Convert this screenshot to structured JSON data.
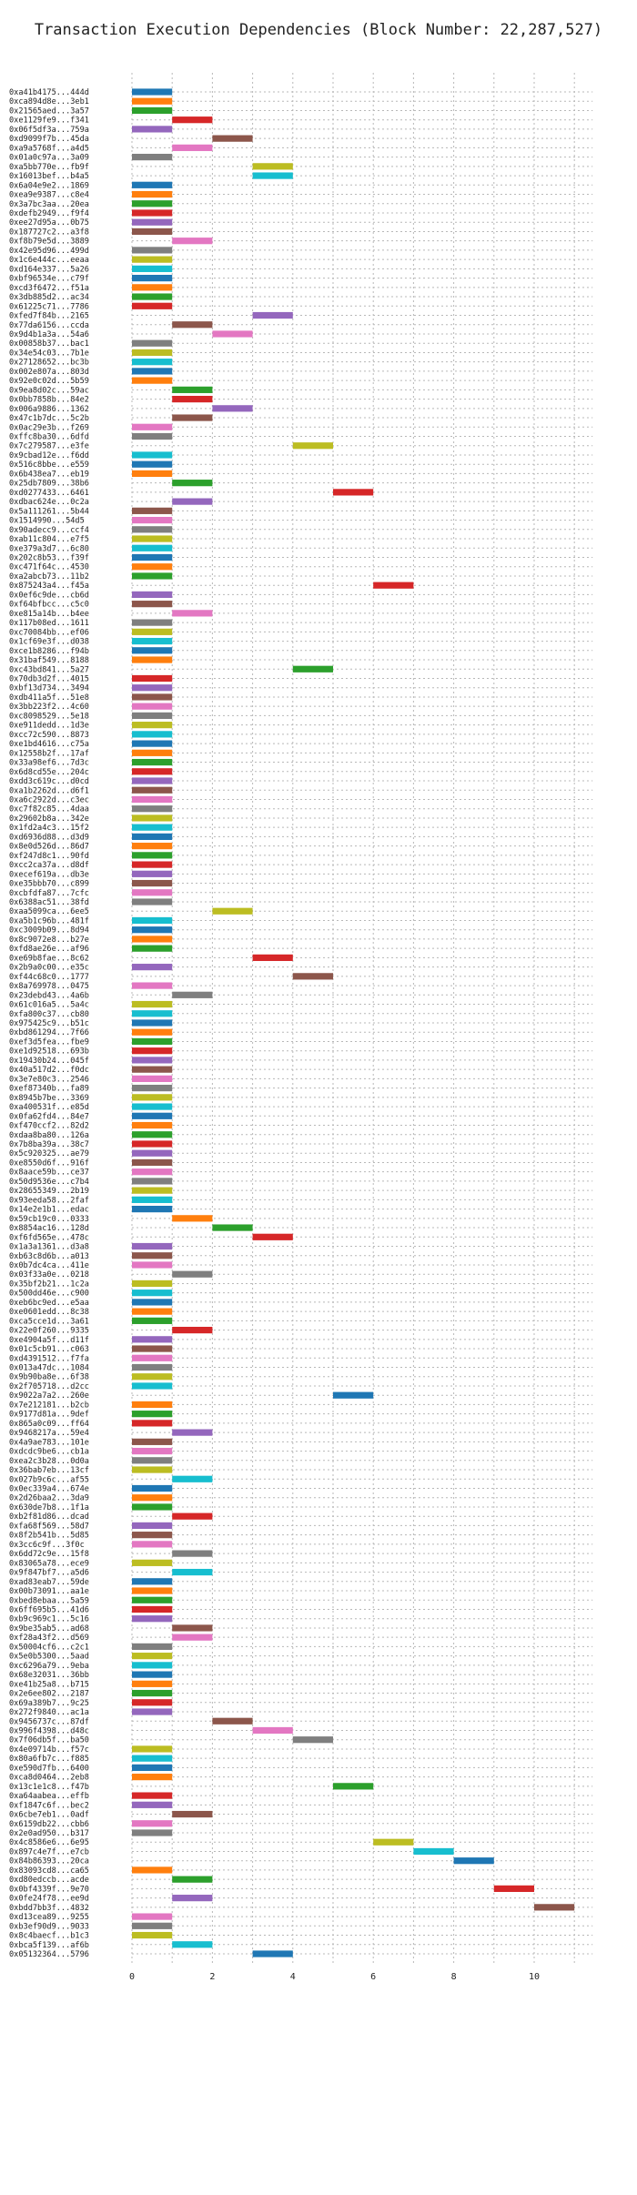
{
  "chart_data": {
    "type": "bar",
    "orientation": "horizontal-gantt",
    "title": "Transaction Execution Dependencies (Block Number: 22,287,527)",
    "xlabel": "",
    "ylabel": "",
    "xlim": [
      0,
      11
    ],
    "xticks": [
      0,
      2,
      4,
      6,
      8,
      10
    ],
    "grid": true,
    "palette": [
      "#1f77b4",
      "#ff7f0e",
      "#2ca02c",
      "#d62728",
      "#9467bd",
      "#8c564b",
      "#e377c2",
      "#7f7f7f",
      "#bcbd22",
      "#17becf"
    ],
    "rows": [
      {
        "label": "0xa41b4175...444d",
        "start": 0,
        "end": 1
      },
      {
        "label": "0xca894d8e...3eb1",
        "start": 0,
        "end": 1
      },
      {
        "label": "0x21565aed...3a57",
        "start": 0,
        "end": 1
      },
      {
        "label": "0xe1129fe9...f341",
        "start": 1,
        "end": 2
      },
      {
        "label": "0x06f5df3a...759a",
        "start": 0,
        "end": 1
      },
      {
        "label": "0xd9099f7b...45da",
        "start": 2,
        "end": 3
      },
      {
        "label": "0xa9a5768f...a4d5",
        "start": 1,
        "end": 2
      },
      {
        "label": "0x01a0c97a...3a09",
        "start": 0,
        "end": 1
      },
      {
        "label": "0xa5bb770e...fb9f",
        "start": 3,
        "end": 4
      },
      {
        "label": "0x16013bef...b4a5",
        "start": 3,
        "end": 4
      },
      {
        "label": "0x6a04e9e2...1869",
        "start": 0,
        "end": 1
      },
      {
        "label": "0xea9e9387...c8e4",
        "start": 0,
        "end": 1
      },
      {
        "label": "0x3a7bc3aa...20ea",
        "start": 0,
        "end": 1
      },
      {
        "label": "0xdefb2949...f9f4",
        "start": 0,
        "end": 1
      },
      {
        "label": "0xee27d95a...0b75",
        "start": 0,
        "end": 1
      },
      {
        "label": "0x187727c2...a3f8",
        "start": 0,
        "end": 1
      },
      {
        "label": "0xf8b79e5d...3889",
        "start": 1,
        "end": 2
      },
      {
        "label": "0x42e95d96...499d",
        "start": 0,
        "end": 1
      },
      {
        "label": "0x1c6e444c...eeaa",
        "start": 0,
        "end": 1
      },
      {
        "label": "0xd164e337...5a26",
        "start": 0,
        "end": 1
      },
      {
        "label": "0xbf96534e...c79f",
        "start": 0,
        "end": 1
      },
      {
        "label": "0xcd3f6472...f51a",
        "start": 0,
        "end": 1
      },
      {
        "label": "0x3db885d2...ac34",
        "start": 0,
        "end": 1
      },
      {
        "label": "0x61225c71...7786",
        "start": 0,
        "end": 1
      },
      {
        "label": "0xfed7f84b...2165",
        "start": 3,
        "end": 4
      },
      {
        "label": "0x77da6156...ccda",
        "start": 1,
        "end": 2
      },
      {
        "label": "0x9d4b1a3a...54a6",
        "start": 2,
        "end": 3
      },
      {
        "label": "0x00858b37...bac1",
        "start": 0,
        "end": 1
      },
      {
        "label": "0x34e54c03...7b1e",
        "start": 0,
        "end": 1
      },
      {
        "label": "0x27128652...bc3b",
        "start": 0,
        "end": 1
      },
      {
        "label": "0x002e807a...803d",
        "start": 0,
        "end": 1
      },
      {
        "label": "0x92e0c02d...5b59",
        "start": 0,
        "end": 1
      },
      {
        "label": "0x9ea8d02c...59ac",
        "start": 1,
        "end": 2
      },
      {
        "label": "0x0bb7858b...84e2",
        "start": 1,
        "end": 2
      },
      {
        "label": "0x006a9886...1362",
        "start": 2,
        "end": 3
      },
      {
        "label": "0x47c1b7dc...5c2b",
        "start": 1,
        "end": 2
      },
      {
        "label": "0x0ac29e3b...f269",
        "start": 0,
        "end": 1
      },
      {
        "label": "0xffc8ba30...6dfd",
        "start": 0,
        "end": 1
      },
      {
        "label": "0x7c279587...e3fe",
        "start": 4,
        "end": 5
      },
      {
        "label": "0x9cbad12e...f6dd",
        "start": 0,
        "end": 1
      },
      {
        "label": "0x516c8bbe...e559",
        "start": 0,
        "end": 1
      },
      {
        "label": "0x6b438ea7...eb19",
        "start": 0,
        "end": 1
      },
      {
        "label": "0x25db7809...38b6",
        "start": 1,
        "end": 2
      },
      {
        "label": "0xd0277433...6461",
        "start": 5,
        "end": 6
      },
      {
        "label": "0xdbac624e...0c2a",
        "start": 1,
        "end": 2
      },
      {
        "label": "0x5a111261...5b44",
        "start": 0,
        "end": 1
      },
      {
        "label": "0x1514990...54d5",
        "start": 0,
        "end": 1
      },
      {
        "label": "0x90adecc9...ccf4",
        "start": 0,
        "end": 1
      },
      {
        "label": "0xab11c804...e7f5",
        "start": 0,
        "end": 1
      },
      {
        "label": "0xe379a3d7...6c80",
        "start": 0,
        "end": 1
      },
      {
        "label": "0x202c8b53...f39f",
        "start": 0,
        "end": 1
      },
      {
        "label": "0xc471f64c...4530",
        "start": 0,
        "end": 1
      },
      {
        "label": "0xa2abcb73...11b2",
        "start": 0,
        "end": 1
      },
      {
        "label": "0x875243a4...f45a",
        "start": 6,
        "end": 7
      },
      {
        "label": "0x0ef6c9de...cb6d",
        "start": 0,
        "end": 1
      },
      {
        "label": "0xf64bfbcc...c5c0",
        "start": 0,
        "end": 1
      },
      {
        "label": "0xe815a14b...b4ee",
        "start": 1,
        "end": 2
      },
      {
        "label": "0x117b08ed...1611",
        "start": 0,
        "end": 1
      },
      {
        "label": "0xc70084bb...ef06",
        "start": 0,
        "end": 1
      },
      {
        "label": "0x1cf69e3f...d038",
        "start": 0,
        "end": 1
      },
      {
        "label": "0xce1b8286...f94b",
        "start": 0,
        "end": 1
      },
      {
        "label": "0x31baf549...8188",
        "start": 0,
        "end": 1
      },
      {
        "label": "0xc43bd841...5a27",
        "start": 4,
        "end": 5
      },
      {
        "label": "0x70db3d2f...4015",
        "start": 0,
        "end": 1
      },
      {
        "label": "0xbf13d734...3494",
        "start": 0,
        "end": 1
      },
      {
        "label": "0xdb411a5f...51e8",
        "start": 0,
        "end": 1
      },
      {
        "label": "0x3bb223f2...4c60",
        "start": 0,
        "end": 1
      },
      {
        "label": "0xc8098529...5e18",
        "start": 0,
        "end": 1
      },
      {
        "label": "0xe911dedd...1d3e",
        "start": 0,
        "end": 1
      },
      {
        "label": "0xcc72c590...8873",
        "start": 0,
        "end": 1
      },
      {
        "label": "0xe1bd4616...c75a",
        "start": 0,
        "end": 1
      },
      {
        "label": "0x12558b2f...17af",
        "start": 0,
        "end": 1
      },
      {
        "label": "0x33a98ef6...7d3c",
        "start": 0,
        "end": 1
      },
      {
        "label": "0x6d8cd55e...204c",
        "start": 0,
        "end": 1
      },
      {
        "label": "0xdd3c619c...d0cd",
        "start": 0,
        "end": 1
      },
      {
        "label": "0xa1b2262d...d6f1",
        "start": 0,
        "end": 1
      },
      {
        "label": "0xa6c2922d...c3ec",
        "start": 0,
        "end": 1
      },
      {
        "label": "0xc7f82c85...4daa",
        "start": 0,
        "end": 1
      },
      {
        "label": "0x29602b8a...342e",
        "start": 0,
        "end": 1
      },
      {
        "label": "0x1fd2a4c3...15f2",
        "start": 0,
        "end": 1
      },
      {
        "label": "0xd6936d88...d3d9",
        "start": 0,
        "end": 1
      },
      {
        "label": "0x8e0d526d...86d7",
        "start": 0,
        "end": 1
      },
      {
        "label": "0xf247d8c1...90fd",
        "start": 0,
        "end": 1
      },
      {
        "label": "0xcc2ca37a...d8df",
        "start": 0,
        "end": 1
      },
      {
        "label": "0xecef619a...db3e",
        "start": 0,
        "end": 1
      },
      {
        "label": "0xe35bbb70...c899",
        "start": 0,
        "end": 1
      },
      {
        "label": "0xcbfdfa87...7cfc",
        "start": 0,
        "end": 1
      },
      {
        "label": "0x6388ac51...38fd",
        "start": 0,
        "end": 1
      },
      {
        "label": "0xaa5099ca...6ee5",
        "start": 2,
        "end": 3
      },
      {
        "label": "0xa5b1c96b...481f",
        "start": 0,
        "end": 1
      },
      {
        "label": "0xc3009b09...8d94",
        "start": 0,
        "end": 1
      },
      {
        "label": "0x8c9072e8...b27e",
        "start": 0,
        "end": 1
      },
      {
        "label": "0xfd8ae26e...af96",
        "start": 0,
        "end": 1
      },
      {
        "label": "0xe69b8fae...8c62",
        "start": 3,
        "end": 4
      },
      {
        "label": "0x2b9a0c00...e35c",
        "start": 0,
        "end": 1
      },
      {
        "label": "0xf44c68c0...1777",
        "start": 4,
        "end": 5
      },
      {
        "label": "0x8a769978...0475",
        "start": 0,
        "end": 1
      },
      {
        "label": "0x23debd43...4a6b",
        "start": 1,
        "end": 2
      },
      {
        "label": "0x61c016a5...5a4c",
        "start": 0,
        "end": 1
      },
      {
        "label": "0xfa800c37...cb80",
        "start": 0,
        "end": 1
      },
      {
        "label": "0x975425c9...b51c",
        "start": 0,
        "end": 1
      },
      {
        "label": "0xbd861294...7f66",
        "start": 0,
        "end": 1
      },
      {
        "label": "0xef3d5fea...fbe9",
        "start": 0,
        "end": 1
      },
      {
        "label": "0xe1d92518...693b",
        "start": 0,
        "end": 1
      },
      {
        "label": "0x19430b24...045f",
        "start": 0,
        "end": 1
      },
      {
        "label": "0x40a517d2...f0dc",
        "start": 0,
        "end": 1
      },
      {
        "label": "0x3e7e80c3...2546",
        "start": 0,
        "end": 1
      },
      {
        "label": "0xef87340b...fa89",
        "start": 0,
        "end": 1
      },
      {
        "label": "0x8945b7be...3369",
        "start": 0,
        "end": 1
      },
      {
        "label": "0xa400531f...e85d",
        "start": 0,
        "end": 1
      },
      {
        "label": "0x0fa62fd4...84e7",
        "start": 0,
        "end": 1
      },
      {
        "label": "0xf470ccf2...82d2",
        "start": 0,
        "end": 1
      },
      {
        "label": "0xdaa8ba80...126a",
        "start": 0,
        "end": 1
      },
      {
        "label": "0x7b8ba39a...38c7",
        "start": 0,
        "end": 1
      },
      {
        "label": "0x5c920325...ae79",
        "start": 0,
        "end": 1
      },
      {
        "label": "0xe8550d6f...916f",
        "start": 0,
        "end": 1
      },
      {
        "label": "0x8aace59b...ce37",
        "start": 0,
        "end": 1
      },
      {
        "label": "0x50d9536e...c7b4",
        "start": 0,
        "end": 1
      },
      {
        "label": "0x28655349...2b19",
        "start": 0,
        "end": 1
      },
      {
        "label": "0x93eeda58...2faf",
        "start": 0,
        "end": 1
      },
      {
        "label": "0x14e2e1b1...edac",
        "start": 0,
        "end": 1
      },
      {
        "label": "0x59cb19c0...0333",
        "start": 1,
        "end": 2
      },
      {
        "label": "0x8854ac16...128d",
        "start": 2,
        "end": 3
      },
      {
        "label": "0xf6fd565e...478c",
        "start": 3,
        "end": 4
      },
      {
        "label": "0x1a3a1361...d3a8",
        "start": 0,
        "end": 1
      },
      {
        "label": "0xb63c8d6b...a013",
        "start": 0,
        "end": 1
      },
      {
        "label": "0x0b7dc4ca...411e",
        "start": 0,
        "end": 1
      },
      {
        "label": "0x03f33a0e...0218",
        "start": 1,
        "end": 2
      },
      {
        "label": "0x35bf2b21...1c2a",
        "start": 0,
        "end": 1
      },
      {
        "label": "0x500dd46e...c900",
        "start": 0,
        "end": 1
      },
      {
        "label": "0xeb6bc9ed...e5aa",
        "start": 0,
        "end": 1
      },
      {
        "label": "0xe0601edd...8c38",
        "start": 0,
        "end": 1
      },
      {
        "label": "0xca5cce1d...3a61",
        "start": 0,
        "end": 1
      },
      {
        "label": "0x22e0f260...9335",
        "start": 1,
        "end": 2
      },
      {
        "label": "0xe4904a5f...d11f",
        "start": 0,
        "end": 1
      },
      {
        "label": "0x01c5cb91...c063",
        "start": 0,
        "end": 1
      },
      {
        "label": "0xd4391512...f7fa",
        "start": 0,
        "end": 1
      },
      {
        "label": "0x013a47dc...1084",
        "start": 0,
        "end": 1
      },
      {
        "label": "0x9b90ba8e...6f38",
        "start": 0,
        "end": 1
      },
      {
        "label": "0x2f705718...d2cc",
        "start": 0,
        "end": 1
      },
      {
        "label": "0x9022a7a2...260e",
        "start": 5,
        "end": 6
      },
      {
        "label": "0x7e212181...b2cb",
        "start": 0,
        "end": 1
      },
      {
        "label": "0x9177d81a...9def",
        "start": 0,
        "end": 1
      },
      {
        "label": "0x865a0c09...ff64",
        "start": 0,
        "end": 1
      },
      {
        "label": "0x9468217a...59e4",
        "start": 1,
        "end": 2
      },
      {
        "label": "0x4a9ae783...101e",
        "start": 0,
        "end": 1
      },
      {
        "label": "0xdcdc9be6...cb1a",
        "start": 0,
        "end": 1
      },
      {
        "label": "0xea2c3b28...0d0a",
        "start": 0,
        "end": 1
      },
      {
        "label": "0x36bab7eb...13cf",
        "start": 0,
        "end": 1
      },
      {
        "label": "0x027b9c6c...af55",
        "start": 1,
        "end": 2
      },
      {
        "label": "0x0ec339a4...674e",
        "start": 0,
        "end": 1
      },
      {
        "label": "0x2d26baa2...3da9",
        "start": 0,
        "end": 1
      },
      {
        "label": "0x630de7b8...1f1a",
        "start": 0,
        "end": 1
      },
      {
        "label": "0xb2f81d86...dcad",
        "start": 1,
        "end": 2
      },
      {
        "label": "0xfa68f569...58d7",
        "start": 0,
        "end": 1
      },
      {
        "label": "0x8f2b541b...5d85",
        "start": 0,
        "end": 1
      },
      {
        "label": "0x3cc6c9f...3f0c",
        "start": 0,
        "end": 1
      },
      {
        "label": "0x6dd72c9e...15f8",
        "start": 1,
        "end": 2
      },
      {
        "label": "0x83065a78...ece9",
        "start": 0,
        "end": 1
      },
      {
        "label": "0x9f847bf7...a5d6",
        "start": 1,
        "end": 2
      },
      {
        "label": "0xad83eab7...59de",
        "start": 0,
        "end": 1
      },
      {
        "label": "0x00b73091...aa1e",
        "start": 0,
        "end": 1
      },
      {
        "label": "0xbed8ebaa...5a59",
        "start": 0,
        "end": 1
      },
      {
        "label": "0x6ff695b5...41d6",
        "start": 0,
        "end": 1
      },
      {
        "label": "0xb9c969c1...5c16",
        "start": 0,
        "end": 1
      },
      {
        "label": "0x9be35ab5...ad68",
        "start": 1,
        "end": 2
      },
      {
        "label": "0xf28a43f2...d569",
        "start": 1,
        "end": 2
      },
      {
        "label": "0x50004cf6...c2c1",
        "start": 0,
        "end": 1
      },
      {
        "label": "0x5e0b5300...5aad",
        "start": 0,
        "end": 1
      },
      {
        "label": "0xc6296a79...9eba",
        "start": 0,
        "end": 1
      },
      {
        "label": "0x68e32031...36bb",
        "start": 0,
        "end": 1
      },
      {
        "label": "0xe41b25a8...b715",
        "start": 0,
        "end": 1
      },
      {
        "label": "0x2e6ee802...2187",
        "start": 0,
        "end": 1
      },
      {
        "label": "0x69a389b7...9c25",
        "start": 0,
        "end": 1
      },
      {
        "label": "0x272f9840...ac1a",
        "start": 0,
        "end": 1
      },
      {
        "label": "0x9456737c...87df",
        "start": 2,
        "end": 3
      },
      {
        "label": "0x996f4398...d48c",
        "start": 3,
        "end": 4
      },
      {
        "label": "0x7f06db5f...ba50",
        "start": 4,
        "end": 5
      },
      {
        "label": "0x4e09714b...f57c",
        "start": 0,
        "end": 1
      },
      {
        "label": "0x80a6fb7c...f885",
        "start": 0,
        "end": 1
      },
      {
        "label": "0xe590d7fb...6400",
        "start": 0,
        "end": 1
      },
      {
        "label": "0xca8d0464...2eb8",
        "start": 0,
        "end": 1
      },
      {
        "label": "0x13c1e1c8...f47b",
        "start": 5,
        "end": 6
      },
      {
        "label": "0xa64aabea...effb",
        "start": 0,
        "end": 1
      },
      {
        "label": "0xf1847c6f...bec2",
        "start": 0,
        "end": 1
      },
      {
        "label": "0x6cbe7eb1...0adf",
        "start": 1,
        "end": 2
      },
      {
        "label": "0x6159db22...cbb6",
        "start": 0,
        "end": 1
      },
      {
        "label": "0x2e0ad950...b317",
        "start": 0,
        "end": 1
      },
      {
        "label": "0x4c8586e6...6e95",
        "start": 6,
        "end": 7
      },
      {
        "label": "0x897c4e7f...e7cb",
        "start": 7,
        "end": 8
      },
      {
        "label": "0x84b86393...20ca",
        "start": 8,
        "end": 9
      },
      {
        "label": "0x83093cd8...ca65",
        "start": 0,
        "end": 1
      },
      {
        "label": "0xd80edccb...acde",
        "start": 1,
        "end": 2
      },
      {
        "label": "0x0bf4339f...9e70",
        "start": 9,
        "end": 10
      },
      {
        "label": "0x0fe24f78...ee9d",
        "start": 1,
        "end": 2
      },
      {
        "label": "0xbdd7bb3f...4832",
        "start": 10,
        "end": 11
      },
      {
        "label": "0xd13cea89...9255",
        "start": 0,
        "end": 1
      },
      {
        "label": "0xb3ef90d9...9033",
        "start": 0,
        "end": 1
      },
      {
        "label": "0x8c4baecf...b1c3",
        "start": 0,
        "end": 1
      },
      {
        "label": "0xbca5f139...af6b",
        "start": 1,
        "end": 2
      },
      {
        "label": "0x05132364...5796",
        "start": 3,
        "end": 4
      }
    ]
  }
}
